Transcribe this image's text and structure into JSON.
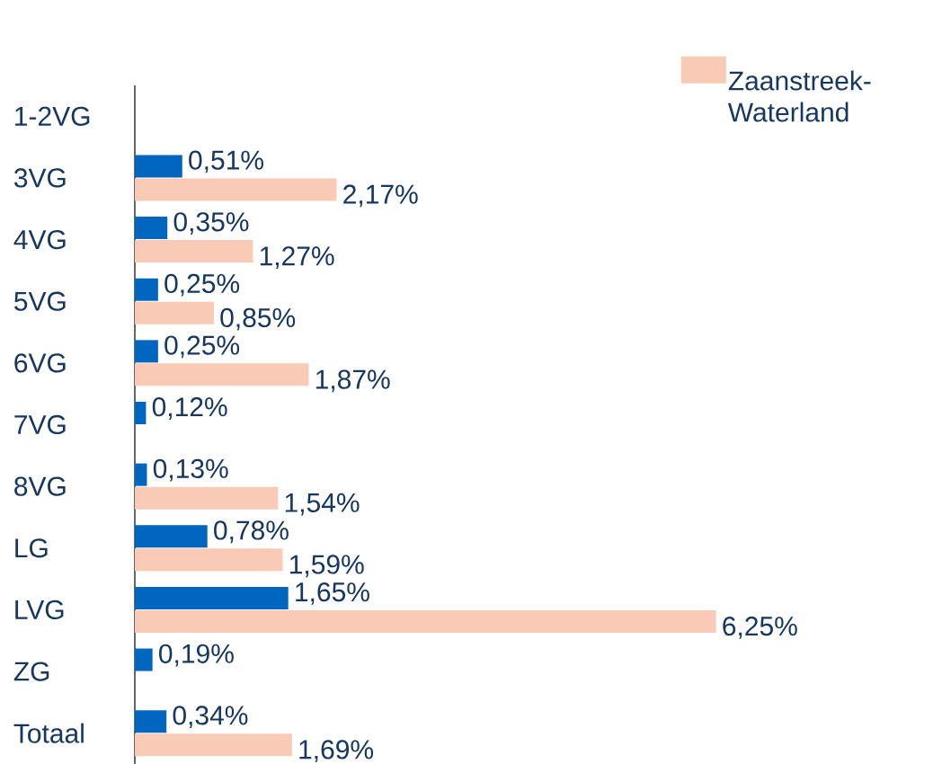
{
  "chart_data": {
    "type": "bar",
    "orientation": "horizontal",
    "legend": "top right",
    "categories": [
      "1-2VG",
      "3VG",
      "4VG",
      "5VG",
      "6VG",
      "7VG",
      "8VG",
      "LG",
      "LVG",
      "ZG",
      "Totaal"
    ],
    "series": [
      {
        "color": "#0066c0",
        "values": [
          null,
          0.51,
          0.35,
          0.25,
          0.25,
          0.12,
          0.13,
          0.78,
          1.65,
          0.19,
          0.34
        ],
        "value_labels": [
          null,
          "0,51%",
          "0,35%",
          "0,25%",
          "0,25%",
          "0,12%",
          "0,13%",
          "0,78%",
          "1,65%",
          "0,19%",
          "0,34%"
        ]
      },
      {
        "name": "Zaanstreek-Waterland",
        "color": "#f9cbb7",
        "values": [
          null,
          2.17,
          1.27,
          0.85,
          1.87,
          null,
          1.54,
          1.59,
          6.25,
          null,
          1.69
        ],
        "value_labels": [
          null,
          "2,17%",
          "1,27%",
          "0,85%",
          "1,87%",
          null,
          "1,54%",
          "1,59%",
          "6,25%",
          null,
          "1,69%"
        ]
      }
    ]
  }
}
